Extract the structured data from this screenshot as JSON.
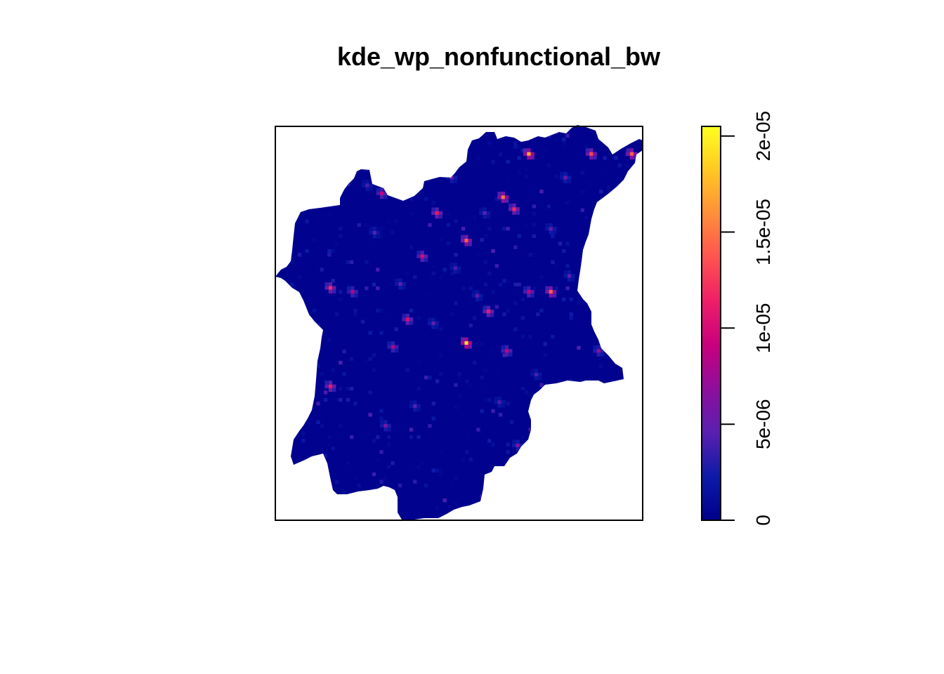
{
  "figure": {
    "title": "kde_wp_nonfunctional_bw"
  },
  "chart_data": {
    "type": "heatmap",
    "title": "kde_wp_nonfunctional_bw",
    "xlabel": "",
    "ylabel": "",
    "grid": false,
    "legend": {
      "type": "colorbar",
      "position": "right",
      "range": [
        0,
        2.05e-05
      ],
      "ticks": [
        0,
        5e-06,
        1e-05,
        1.5e-05,
        2e-05
      ],
      "tick_labels": [
        "0",
        "5e-06",
        "1e-05",
        "1.5e-05",
        "2e-05"
      ],
      "colors": [
        "#00008B",
        "#0D1AA8",
        "#5A1FB0",
        "#8E0E9C",
        "#C8007E",
        "#EE1E68",
        "#FF5350",
        "#FF8E3A",
        "#FFC823",
        "#FFFF20"
      ]
    },
    "background_value": 2.5e-07,
    "hotspots": [
      {
        "x": 0.52,
        "y": 0.45,
        "value": 1.9e-05
      },
      {
        "x": 0.62,
        "y": 0.82,
        "value": 1.5e-05
      },
      {
        "x": 0.65,
        "y": 0.79,
        "value": 1.2e-05
      },
      {
        "x": 0.52,
        "y": 0.71,
        "value": 1.4e-05
      },
      {
        "x": 0.44,
        "y": 0.78,
        "value": 1.1e-05
      },
      {
        "x": 0.69,
        "y": 0.93,
        "value": 1.7e-05
      },
      {
        "x": 0.86,
        "y": 0.93,
        "value": 1.3e-05
      },
      {
        "x": 0.69,
        "y": 0.58,
        "value": 9e-06
      },
      {
        "x": 0.75,
        "y": 0.58,
        "value": 1.4e-05
      },
      {
        "x": 0.4,
        "y": 0.67,
        "value": 1e-05
      },
      {
        "x": 0.36,
        "y": 0.51,
        "value": 1e-05
      },
      {
        "x": 0.32,
        "y": 0.44,
        "value": 8e-06
      },
      {
        "x": 0.15,
        "y": 0.59,
        "value": 1.2e-05
      },
      {
        "x": 0.21,
        "y": 0.58,
        "value": 8e-06
      },
      {
        "x": 0.15,
        "y": 0.34,
        "value": 1.1e-05
      },
      {
        "x": 0.29,
        "y": 0.83,
        "value": 9e-06
      },
      {
        "x": 0.63,
        "y": 0.43,
        "value": 9e-06
      },
      {
        "x": 0.58,
        "y": 0.53,
        "value": 1.1e-05
      },
      {
        "x": 0.88,
        "y": 0.43,
        "value": 7e-06
      },
      {
        "x": 0.3,
        "y": 0.24,
        "value": 6e-06
      },
      {
        "x": 0.66,
        "y": 0.19,
        "value": 6e-06
      },
      {
        "x": 0.48,
        "y": 0.87,
        "value": 5e-06
      },
      {
        "x": 0.79,
        "y": 0.87,
        "value": 5e-06
      },
      {
        "x": 0.43,
        "y": 0.5,
        "value": 5e-06
      },
      {
        "x": 0.34,
        "y": 0.6,
        "value": 5e-06
      },
      {
        "x": 0.75,
        "y": 0.74,
        "value": 5e-06
      },
      {
        "x": 0.55,
        "y": 0.57,
        "value": 4.5e-06
      },
      {
        "x": 0.38,
        "y": 0.29,
        "value": 4.5e-06
      },
      {
        "x": 0.57,
        "y": 0.78,
        "value": 4.5e-06
      },
      {
        "x": 0.8,
        "y": 0.62,
        "value": 4.5e-06
      },
      {
        "x": 0.27,
        "y": 0.73,
        "value": 4.5e-06
      },
      {
        "x": 0.97,
        "y": 0.93,
        "value": 1.4e-05
      },
      {
        "x": 0.49,
        "y": 0.64,
        "value": 4e-06
      },
      {
        "x": 0.61,
        "y": 0.3,
        "value": 4e-06
      },
      {
        "x": 0.25,
        "y": 0.85,
        "value": 4e-06
      },
      {
        "x": 0.71,
        "y": 0.37,
        "value": 4e-06
      }
    ]
  }
}
